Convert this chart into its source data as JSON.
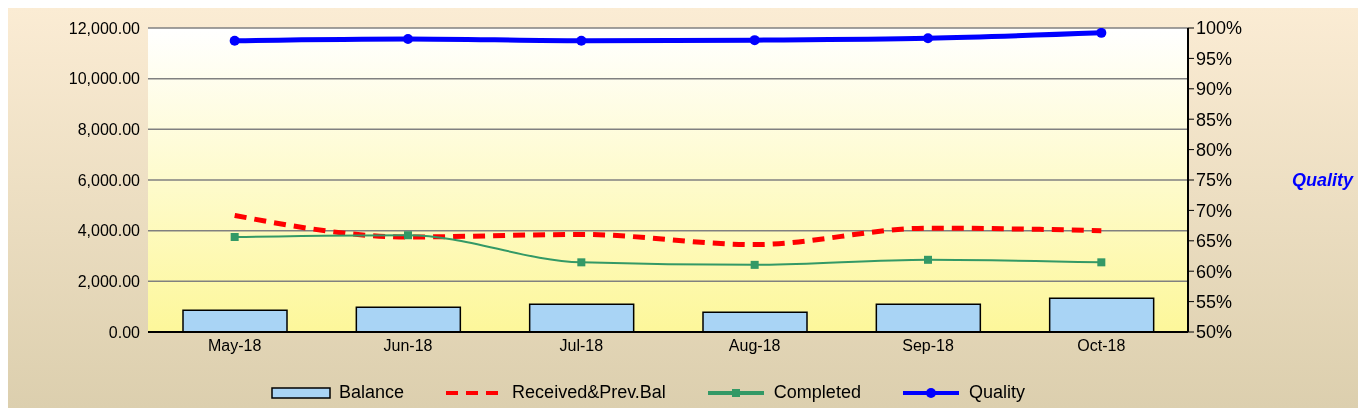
{
  "chart_data": {
    "type": "bar",
    "categories": [
      "May-18",
      "Jun-18",
      "Jul-18",
      "Aug-18",
      "Sep-18",
      "Oct-18"
    ],
    "series": [
      {
        "name": "Balance",
        "color": "#a9d4f5",
        "values": [
          860,
          980,
          1100,
          780,
          1100,
          1330
        ]
      },
      {
        "name": "Received&Prev.Bal",
        "type": "line",
        "color": "#ff0000",
        "line_style": "dashed",
        "marker": "none",
        "values": [
          4600,
          3750,
          3850,
          3450,
          4100,
          4000
        ]
      },
      {
        "name": "Completed",
        "type": "line",
        "color": "#339966",
        "line_style": "solid",
        "marker": "square",
        "values": [
          3750,
          3820,
          2750,
          2650,
          2850,
          2750
        ]
      },
      {
        "name": "Quality",
        "type": "line",
        "color": "#0000ff",
        "line_style": "solid",
        "marker": "circle",
        "axis": "y2",
        "values": [
          97.9,
          98.2,
          97.9,
          98.0,
          98.3,
          99.2
        ]
      }
    ],
    "ylim": [
      0,
      12000
    ],
    "yticks": [
      {
        "value": 0,
        "label": "0.00"
      },
      {
        "value": 2000,
        "label": "2,000.00"
      },
      {
        "value": 4000,
        "label": "4,000.00"
      },
      {
        "value": 6000,
        "label": "6,000.00"
      },
      {
        "value": 8000,
        "label": "8,000.00"
      },
      {
        "value": 10000,
        "label": "10,000.00"
      },
      {
        "value": 12000,
        "label": "12,000.00"
      }
    ],
    "y2lim": [
      50,
      100
    ],
    "y2ticks": [
      {
        "value": 50,
        "label": "50%"
      },
      {
        "value": 55,
        "label": "55%"
      },
      {
        "value": 60,
        "label": "60%"
      },
      {
        "value": 65,
        "label": "65%"
      },
      {
        "value": 70,
        "label": "70%"
      },
      {
        "value": 75,
        "label": "75%"
      },
      {
        "value": 80,
        "label": "80%"
      },
      {
        "value": 85,
        "label": "85%"
      },
      {
        "value": 90,
        "label": "90%"
      },
      {
        "value": 95,
        "label": "95%"
      },
      {
        "value": 100,
        "label": "100%"
      }
    ],
    "y2label": "Quality",
    "grid": "y",
    "legend": "bottom"
  }
}
